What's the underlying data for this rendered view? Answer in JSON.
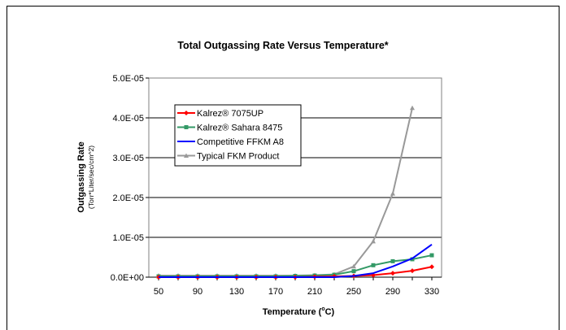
{
  "chart_data": {
    "type": "line",
    "title": "Total Outgassing Rate Versus Temperature*",
    "xlabel": "Temperature (",
    "xlabel_unit": "o",
    "xlabel_tail": "C)",
    "ylabel": "Outgassing Rate",
    "ylabel_unit": "(Torr*Liter/sec/cm^2)",
    "x": [
      50,
      70,
      90,
      110,
      130,
      150,
      170,
      190,
      210,
      230,
      250,
      270,
      290,
      310,
      330
    ],
    "x_ticks": [
      "50",
      "90",
      "130",
      "170",
      "210",
      "250",
      "290",
      "330"
    ],
    "x_tick_values": [
      50,
      90,
      130,
      170,
      210,
      250,
      290,
      330
    ],
    "y_ticks": [
      "0.0E+00",
      "1.0E-05",
      "2.0E-05",
      "3.0E-05",
      "4.0E-05",
      "5.0E-05"
    ],
    "y_tick_values": [
      0,
      1e-05,
      2e-05,
      3e-05,
      4e-05,
      5e-05
    ],
    "xlim": [
      40,
      340
    ],
    "ylim": [
      0,
      5e-05
    ],
    "grid": "horizontal",
    "legend_position": "top-left",
    "series": [
      {
        "name": "Kalrez® 7075UP",
        "color": "#ff0000",
        "marker": "diamond",
        "values": [
          0,
          0,
          0,
          0,
          0,
          0,
          0,
          0,
          1e-07,
          2e-07,
          3e-07,
          5e-07,
          1e-06,
          1.6e-06,
          2.6e-06
        ]
      },
      {
        "name": "Kalrez® Sahara 8475",
        "color": "#339966",
        "marker": "square",
        "values": [
          2e-07,
          2e-07,
          2e-07,
          2e-07,
          2e-07,
          2e-07,
          2e-07,
          3e-07,
          4e-07,
          6e-07,
          1.5e-06,
          3e-06,
          4e-06,
          4.5e-06,
          5.5e-06
        ]
      },
      {
        "name": "Competitive FFKM A8",
        "color": "#0000ff",
        "marker": "none",
        "values": [
          0,
          0,
          0,
          0,
          0,
          0,
          0,
          0,
          0,
          0,
          3e-07,
          1e-06,
          2.7e-06,
          4.7e-06,
          8.2e-06
        ]
      },
      {
        "name": "Typical FKM Product",
        "color": "#999999",
        "marker": "triangle",
        "values": [
          4e-07,
          4e-07,
          4e-07,
          4e-07,
          4e-07,
          4e-07,
          4e-07,
          4e-07,
          5e-07,
          7e-07,
          2.7e-06,
          9e-06,
          2.1e-05,
          4.25e-05,
          null
        ]
      }
    ]
  }
}
